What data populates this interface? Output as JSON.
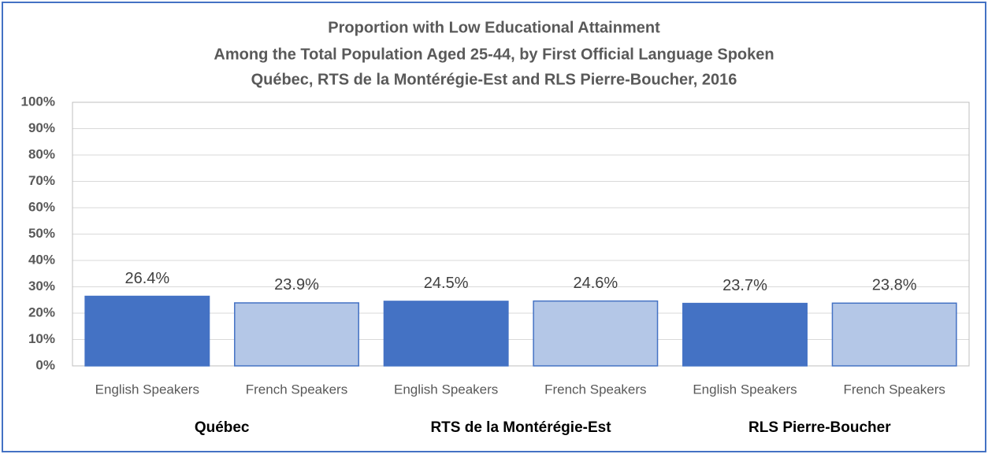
{
  "chart_data": {
    "type": "bar",
    "title": [
      "Proportion with Low Educational Attainment",
      "Among the Total Population Aged 25-44, by First Official Language Spoken",
      "Québec, RTS de la Montérégie-Est and RLS Pierre-Boucher, 2016"
    ],
    "categories": [
      "English Speakers",
      "French Speakers",
      "English Speakers",
      "French Speakers",
      "English Speakers",
      "French Speakers"
    ],
    "group_labels": [
      "Québec",
      "RTS de la Montérégie-Est",
      "RLS Pierre-Boucher"
    ],
    "values": [
      26.4,
      23.9,
      24.5,
      24.6,
      23.7,
      23.8
    ],
    "value_labels": [
      "26.4%",
      "23.9%",
      "24.5%",
      "24.6%",
      "23.7%",
      "23.8%"
    ],
    "colors": [
      "#4472c4",
      "#b4c7e7",
      "#4472c4",
      "#b4c7e7",
      "#4472c4",
      "#b4c7e7"
    ],
    "ylim": [
      0,
      100
    ],
    "yticks": [
      {
        "value": 0,
        "label": "0%"
      },
      {
        "value": 10,
        "label": "10%"
      },
      {
        "value": 20,
        "label": "20%"
      },
      {
        "value": 30,
        "label": "30%"
      },
      {
        "value": 40,
        "label": "40%"
      },
      {
        "value": 50,
        "label": "50%"
      },
      {
        "value": 60,
        "label": "60%"
      },
      {
        "value": 70,
        "label": "70%"
      },
      {
        "value": 80,
        "label": "80%"
      },
      {
        "value": 90,
        "label": "90%"
      },
      {
        "value": 100,
        "label": "100%"
      }
    ],
    "grid": true
  }
}
